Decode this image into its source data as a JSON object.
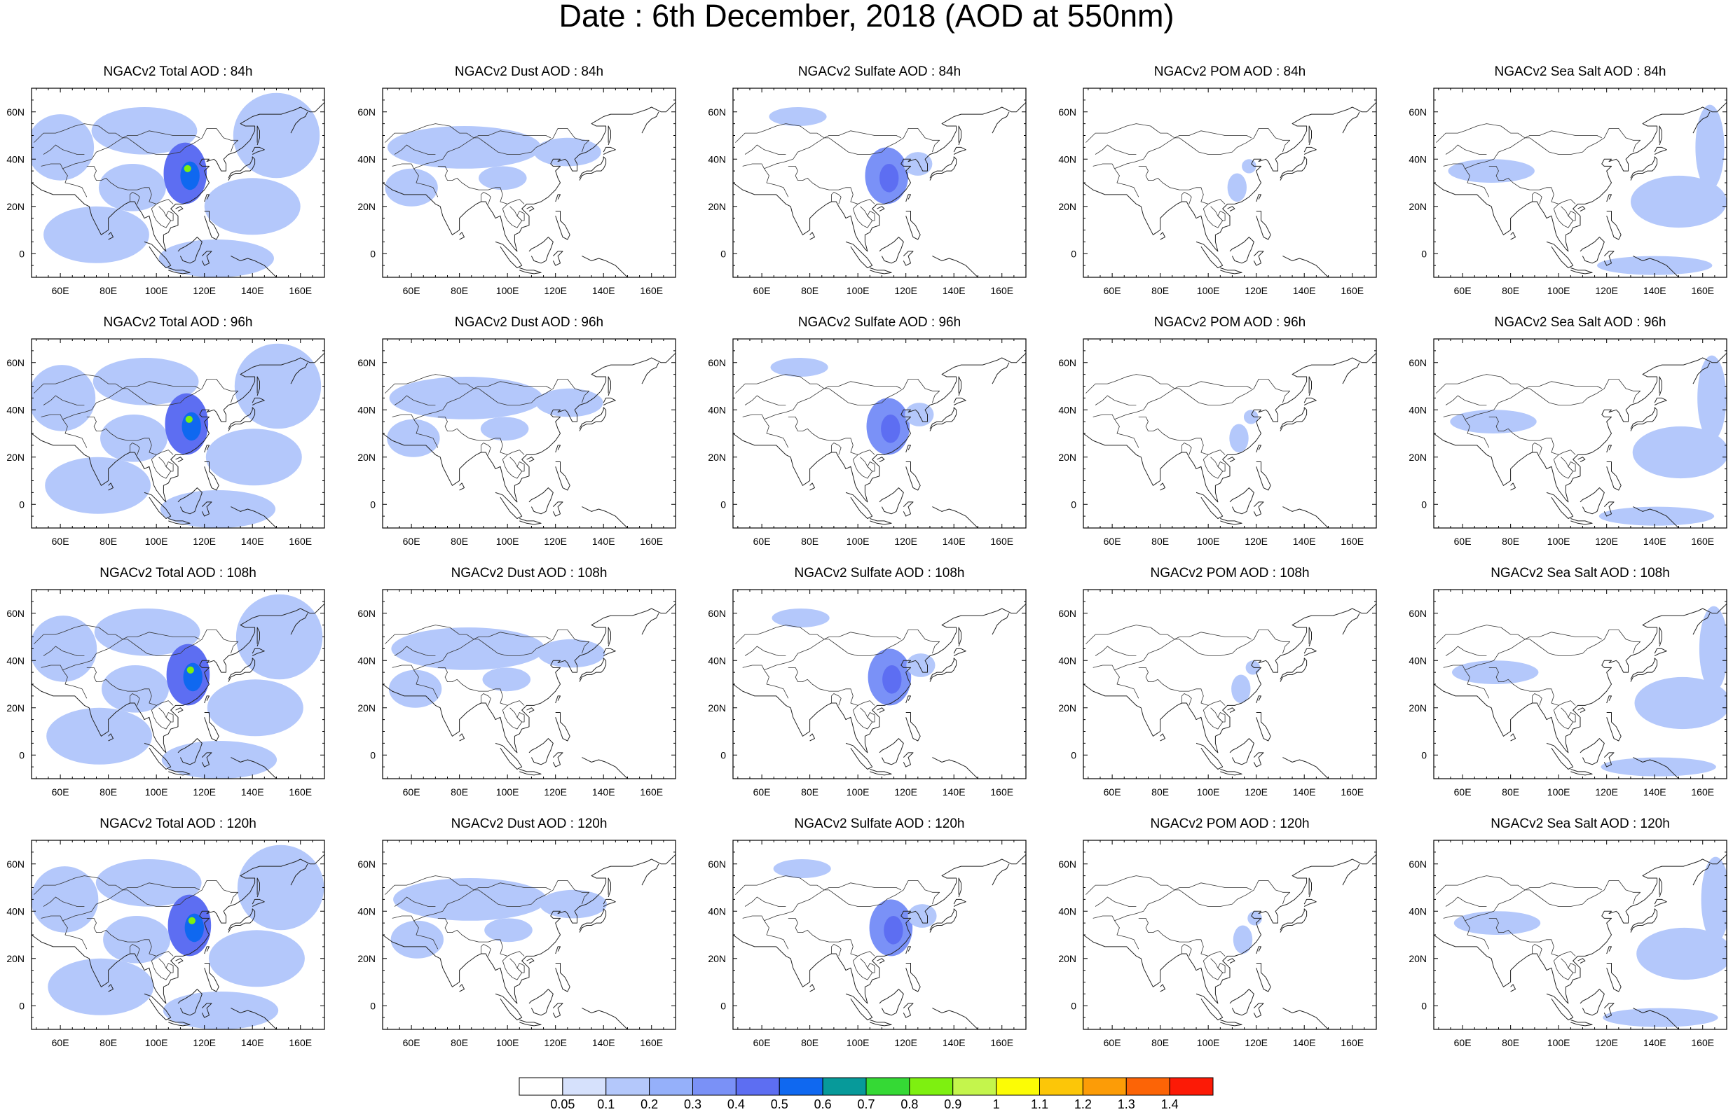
{
  "title": "Date : 6th December, 2018 (AOD at 550nm)",
  "panels": [
    {
      "title": "NGACv2 Total AOD : 84h",
      "species": "total",
      "hour": 84
    },
    {
      "title": "NGACv2 Dust AOD : 84h",
      "species": "dust",
      "hour": 84
    },
    {
      "title": "NGACv2 Sulfate AOD : 84h",
      "species": "sulfate",
      "hour": 84
    },
    {
      "title": "NGACv2 POM AOD : 84h",
      "species": "pom",
      "hour": 84
    },
    {
      "title": "NGACv2 Sea Salt AOD : 84h",
      "species": "seasalt",
      "hour": 84
    },
    {
      "title": "NGACv2 Total AOD : 96h",
      "species": "total",
      "hour": 96
    },
    {
      "title": "NGACv2 Dust AOD : 96h",
      "species": "dust",
      "hour": 96
    },
    {
      "title": "NGACv2 Sulfate AOD : 96h",
      "species": "sulfate",
      "hour": 96
    },
    {
      "title": "NGACv2 POM AOD : 96h",
      "species": "pom",
      "hour": 96
    },
    {
      "title": "NGACv2 Sea Salt AOD : 96h",
      "species": "seasalt",
      "hour": 96
    },
    {
      "title": "NGACv2 Total AOD : 108h",
      "species": "total",
      "hour": 108
    },
    {
      "title": "NGACv2 Dust AOD : 108h",
      "species": "dust",
      "hour": 108
    },
    {
      "title": "NGACv2 Sulfate AOD : 108h",
      "species": "sulfate",
      "hour": 108
    },
    {
      "title": "NGACv2 POM AOD : 108h",
      "species": "pom",
      "hour": 108
    },
    {
      "title": "NGACv2 Sea Salt AOD : 108h",
      "species": "seasalt",
      "hour": 108
    },
    {
      "title": "NGACv2 Total AOD : 120h",
      "species": "total",
      "hour": 120
    },
    {
      "title": "NGACv2 Dust AOD : 120h",
      "species": "dust",
      "hour": 120
    },
    {
      "title": "NGACv2 Sulfate AOD : 120h",
      "species": "sulfate",
      "hour": 120
    },
    {
      "title": "NGACv2 POM AOD : 120h",
      "species": "pom",
      "hour": 120
    },
    {
      "title": "NGACv2 Sea Salt  AOD : 120h",
      "species": "seasalt",
      "hour": 120
    }
  ],
  "map": {
    "lon_range": [
      48,
      170
    ],
    "lat_range": [
      -10,
      70
    ],
    "lon_ticks": [
      60,
      80,
      100,
      120,
      140,
      160
    ],
    "lon_tick_labels": [
      "60E",
      "80E",
      "100E",
      "120E",
      "140E",
      "160E"
    ],
    "lat_ticks": [
      0,
      20,
      40,
      60
    ],
    "lat_tick_labels": [
      "0",
      "20N",
      "40N",
      "60N"
    ]
  },
  "colorbar": {
    "labels": [
      "0.05",
      "0.1",
      "0.2",
      "0.3",
      "0.4",
      "0.5",
      "0.6",
      "0.7",
      "0.8",
      "0.9",
      "1",
      "1.1",
      "1.2",
      "1.3",
      "1.4"
    ],
    "colors": [
      "#ffffff",
      "#d6e1fc",
      "#b4c8fb",
      "#95b0fa",
      "#7a91f7",
      "#5d6ef2",
      "#0f68f0",
      "#079a9a",
      "#35d935",
      "#7ef010",
      "#c4f54c",
      "#fcfc05",
      "#fcc608",
      "#fc9c07",
      "#fc6406",
      "#fc1a06"
    ]
  },
  "chart_data": {
    "type": "heatmap",
    "variable": "AOD at 550nm",
    "date": "6th December, 2018",
    "model": "NGACv2",
    "forecast_hours": [
      84,
      96,
      108,
      120
    ],
    "species": [
      "Total",
      "Dust",
      "Sulfate",
      "POM",
      "Sea Salt"
    ],
    "levels": [
      0.05,
      0.1,
      0.2,
      0.3,
      0.4,
      0.5,
      0.6,
      0.7,
      0.8,
      0.9,
      1,
      1.1,
      1.2,
      1.3,
      1.4
    ],
    "lon_range": [
      48,
      170
    ],
    "lat_range": [
      -10,
      70
    ],
    "features": {
      "total": [
        {
          "lon": 60,
          "lat": 45,
          "rx": 14,
          "ry": 14,
          "value": 0.15
        },
        {
          "lon": 95,
          "lat": 52,
          "rx": 22,
          "ry": 10,
          "value": 0.15
        },
        {
          "lon": 90,
          "lat": 28,
          "rx": 14,
          "ry": 10,
          "value": 0.15
        },
        {
          "lon": 75,
          "lat": 8,
          "rx": 22,
          "ry": 12,
          "value": 0.15
        },
        {
          "lon": 150,
          "lat": 50,
          "rx": 18,
          "ry": 18,
          "value": 0.15
        },
        {
          "lon": 140,
          "lat": 20,
          "rx": 20,
          "ry": 12,
          "value": 0.15
        },
        {
          "lon": 125,
          "lat": -2,
          "rx": 24,
          "ry": 8,
          "value": 0.15
        },
        {
          "lon": 112,
          "lat": 34,
          "rx": 9,
          "ry": 13,
          "value": 0.45
        },
        {
          "lon": 114,
          "lat": 33,
          "rx": 4,
          "ry": 6,
          "value": 0.55
        },
        {
          "lon": 113,
          "lat": 36,
          "rx": 1.5,
          "ry": 1.5,
          "value": 0.8
        }
      ],
      "dust": [
        {
          "lon": 82,
          "lat": 45,
          "rx": 32,
          "ry": 9,
          "value": 0.15
        },
        {
          "lon": 60,
          "lat": 28,
          "rx": 11,
          "ry": 8,
          "value": 0.15
        },
        {
          "lon": 125,
          "lat": 43,
          "rx": 14,
          "ry": 6,
          "value": 0.15
        },
        {
          "lon": 98,
          "lat": 32,
          "rx": 10,
          "ry": 5,
          "value": 0.15
        }
      ],
      "sulfate": [
        {
          "lon": 112,
          "lat": 33,
          "rx": 9,
          "ry": 12,
          "value": 0.3
        },
        {
          "lon": 113,
          "lat": 32,
          "rx": 4,
          "ry": 6,
          "value": 0.45
        },
        {
          "lon": 75,
          "lat": 58,
          "rx": 12,
          "ry": 4,
          "value": 0.15
        },
        {
          "lon": 125,
          "lat": 38,
          "rx": 6,
          "ry": 5,
          "value": 0.15
        }
      ],
      "pom": [
        {
          "lon": 112,
          "lat": 28,
          "rx": 4,
          "ry": 6,
          "value": 0.15
        },
        {
          "lon": 117,
          "lat": 37,
          "rx": 3,
          "ry": 3,
          "value": 0.15
        }
      ],
      "seasalt": [
        {
          "lon": 150,
          "lat": 22,
          "rx": 20,
          "ry": 11,
          "value": 0.15
        },
        {
          "lon": 163,
          "lat": 45,
          "rx": 6,
          "ry": 18,
          "value": 0.15
        },
        {
          "lon": 140,
          "lat": -5,
          "rx": 24,
          "ry": 4,
          "value": 0.15
        },
        {
          "lon": 72,
          "lat": 35,
          "rx": 18,
          "ry": 5,
          "value": 0.15
        }
      ]
    }
  }
}
